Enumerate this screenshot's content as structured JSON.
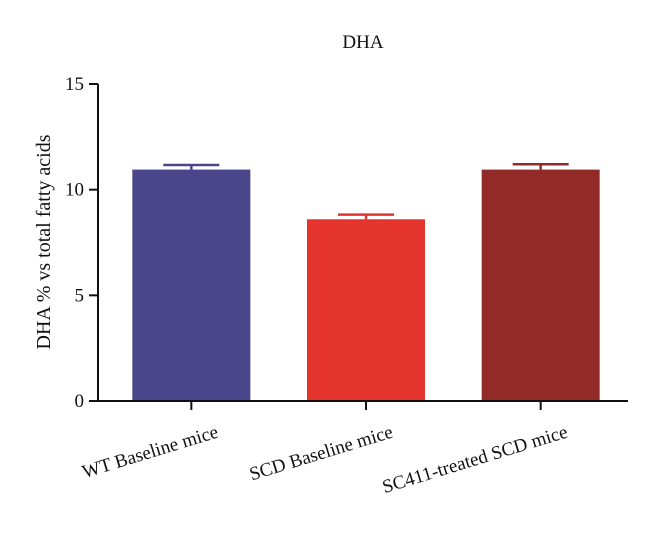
{
  "chart_data": {
    "type": "bar",
    "title": "DHA",
    "ylabel": "DHA % vs total fatty acids",
    "xlabel": "",
    "ylim": [
      0,
      15
    ],
    "yticks": [
      0,
      5,
      10,
      15
    ],
    "categories": [
      "WT Baseline mice",
      "SCD Baseline mice",
      "SC411-treated SCD mice"
    ],
    "values": [
      10.95,
      8.6,
      10.95
    ],
    "errors": [
      0.22,
      0.22,
      0.25
    ],
    "colors": [
      "#4b468b",
      "#e5332e",
      "#922b27"
    ],
    "grid": false,
    "legend": "none"
  }
}
